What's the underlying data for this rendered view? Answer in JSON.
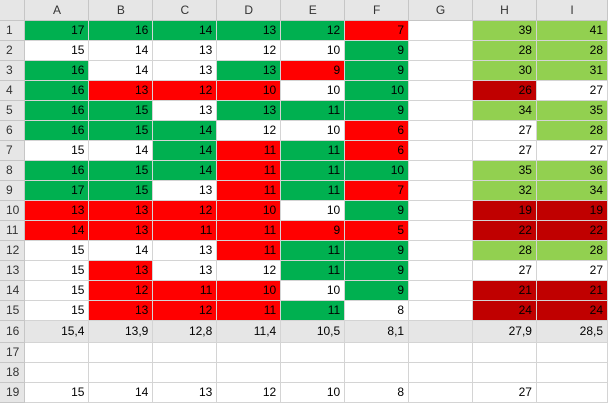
{
  "sheet": {
    "columns": [
      "A",
      "B",
      "C",
      "D",
      "E",
      "F",
      "G",
      "H",
      "I"
    ],
    "rows": [
      {
        "n": "1",
        "c": [
          "17",
          "16",
          "14",
          "13",
          "12",
          "7",
          "",
          "39",
          "41"
        ]
      },
      {
        "n": "2",
        "c": [
          "15",
          "14",
          "13",
          "12",
          "10",
          "9",
          "",
          "28",
          "28"
        ]
      },
      {
        "n": "3",
        "c": [
          "16",
          "14",
          "13",
          "13",
          "9",
          "9",
          "",
          "30",
          "31"
        ]
      },
      {
        "n": "4",
        "c": [
          "16",
          "13",
          "12",
          "10",
          "10",
          "10",
          "",
          "26",
          "27"
        ]
      },
      {
        "n": "5",
        "c": [
          "16",
          "15",
          "13",
          "13",
          "11",
          "9",
          "",
          "34",
          "35"
        ]
      },
      {
        "n": "6",
        "c": [
          "16",
          "15",
          "14",
          "12",
          "10",
          "6",
          "",
          "27",
          "28"
        ]
      },
      {
        "n": "7",
        "c": [
          "15",
          "14",
          "14",
          "11",
          "11",
          "6",
          "",
          "27",
          "27"
        ]
      },
      {
        "n": "8",
        "c": [
          "16",
          "15",
          "14",
          "11",
          "11",
          "10",
          "",
          "35",
          "36"
        ]
      },
      {
        "n": "9",
        "c": [
          "17",
          "15",
          "13",
          "11",
          "11",
          "7",
          "",
          "32",
          "34"
        ]
      },
      {
        "n": "10",
        "c": [
          "13",
          "13",
          "12",
          "10",
          "10",
          "9",
          "",
          "19",
          "19"
        ]
      },
      {
        "n": "11",
        "c": [
          "14",
          "13",
          "11",
          "11",
          "9",
          "5",
          "",
          "22",
          "22"
        ]
      },
      {
        "n": "12",
        "c": [
          "15",
          "14",
          "13",
          "11",
          "11",
          "9",
          "",
          "28",
          "28"
        ]
      },
      {
        "n": "13",
        "c": [
          "15",
          "13",
          "13",
          "12",
          "11",
          "9",
          "",
          "27",
          "27"
        ]
      },
      {
        "n": "14",
        "c": [
          "15",
          "12",
          "11",
          "10",
          "10",
          "9",
          "",
          "21",
          "21"
        ]
      },
      {
        "n": "15",
        "c": [
          "15",
          "13",
          "12",
          "11",
          "11",
          "8",
          "",
          "24",
          "24"
        ]
      },
      {
        "n": "16",
        "c": [
          "15,4",
          "13,9",
          "12,8",
          "11,4",
          "10,5",
          "8,1",
          "",
          "27,9",
          "28,5"
        ]
      },
      {
        "n": "17",
        "c": [
          "",
          "",
          "",
          "",
          "",
          "",
          "",
          "",
          ""
        ]
      },
      {
        "n": "18",
        "c": [
          "",
          "",
          "",
          "",
          "",
          "",
          "",
          "",
          ""
        ]
      },
      {
        "n": "19",
        "c": [
          "15",
          "14",
          "13",
          "12",
          "10",
          "8",
          "",
          "27",
          ""
        ]
      }
    ],
    "fills": [
      [
        "g",
        "g",
        "g",
        "g",
        "g",
        "r",
        "",
        "l",
        "l"
      ],
      [
        "w",
        "w",
        "w",
        "w",
        "w",
        "g",
        "",
        "l",
        "l"
      ],
      [
        "g",
        "w",
        "w",
        "g",
        "r",
        "g",
        "",
        "l",
        "l"
      ],
      [
        "g",
        "r",
        "r",
        "r",
        "w",
        "g",
        "",
        "d",
        "w"
      ],
      [
        "g",
        "g",
        "w",
        "g",
        "g",
        "g",
        "",
        "l",
        "l"
      ],
      [
        "g",
        "g",
        "g",
        "w",
        "w",
        "r",
        "",
        "w",
        "l"
      ],
      [
        "w",
        "w",
        "g",
        "r",
        "g",
        "r",
        "",
        "w",
        "w"
      ],
      [
        "g",
        "g",
        "g",
        "r",
        "g",
        "g",
        "",
        "l",
        "l"
      ],
      [
        "g",
        "g",
        "w",
        "r",
        "g",
        "r",
        "",
        "l",
        "l"
      ],
      [
        "r",
        "r",
        "r",
        "r",
        "w",
        "g",
        "",
        "d",
        "d"
      ],
      [
        "r",
        "r",
        "r",
        "r",
        "r",
        "r",
        "",
        "d",
        "d"
      ],
      [
        "w",
        "w",
        "w",
        "r",
        "g",
        "g",
        "",
        "l",
        "l"
      ],
      [
        "w",
        "r",
        "w",
        "w",
        "g",
        "g",
        "",
        "w",
        "w"
      ],
      [
        "w",
        "r",
        "r",
        "r",
        "w",
        "g",
        "",
        "d",
        "d"
      ],
      [
        "w",
        "r",
        "r",
        "r",
        "g",
        "w",
        "",
        "d",
        "d"
      ],
      [
        "s",
        "s",
        "s",
        "s",
        "s",
        "s",
        "s",
        "s",
        "s"
      ],
      [
        "",
        "",
        "",
        "",
        "",
        "",
        "",
        "",
        ""
      ],
      [
        "",
        "",
        "",
        "",
        "",
        "",
        "",
        "",
        ""
      ],
      [
        "",
        "",
        "",
        "",
        "",
        "",
        "",
        "",
        ""
      ]
    ],
    "colors": {
      "g": "#00b050",
      "r": "#ff0000",
      "l": "#92d050",
      "d": "#c00000",
      "w": "#ffffff",
      "s": "#e6e6e6"
    }
  }
}
